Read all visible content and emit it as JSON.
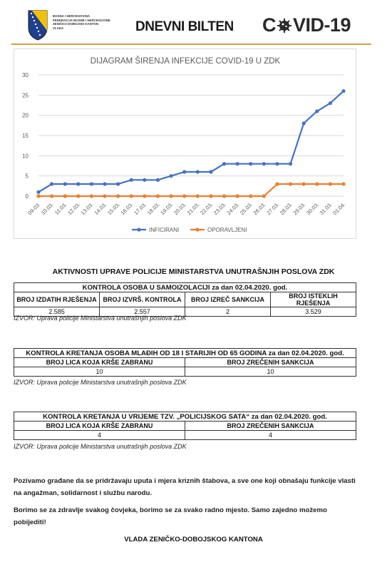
{
  "header": {
    "crest_lines": [
      "BOSNA I HERCEGOVINA",
      "FEDERACIJA BOSNE I HERCEGOVINE",
      "ZENIČKO-DOBOJSKI KANTON",
      "VLADA"
    ],
    "bulletin_title": "DNEVNI BILTEN",
    "covid_left": "C",
    "covid_right": "VID-19"
  },
  "chart_data": {
    "type": "line",
    "title": "DIJAGRAM ŠIRENJA INFEKCIJE COVID-19 U ZDK",
    "categories": [
      "09.03.",
      "10.03.",
      "11.03.",
      "12.03.",
      "13.03.",
      "14.03.",
      "15.03.",
      "16.03.",
      "17.03.",
      "18.03.",
      "19.03.",
      "20.03.",
      "21.03.",
      "22.03.",
      "23.03.",
      "24.03.",
      "25.03.",
      "26.03.",
      "27.03.",
      "28.03.",
      "29.03.",
      "30.03.",
      "31.03.",
      "01.04."
    ],
    "series": [
      {
        "name": "INFICIRANI",
        "color": "#4472c4",
        "values": [
          1,
          3,
          3,
          3,
          3,
          3,
          3,
          4,
          4,
          4,
          5,
          6,
          6,
          6,
          8,
          8,
          8,
          8,
          8,
          8,
          18,
          21,
          23,
          26
        ]
      },
      {
        "name": "OPORAVLJENI",
        "color": "#ed7d31",
        "values": [
          0,
          0,
          0,
          0,
          0,
          0,
          0,
          0,
          0,
          0,
          0,
          0,
          0,
          0,
          0,
          0,
          0,
          0,
          3,
          3,
          3,
          3,
          3,
          3
        ]
      }
    ],
    "yticks": [
      0,
      5,
      10,
      15,
      20,
      25,
      30
    ],
    "ylim": [
      0,
      30
    ],
    "grid": true,
    "legend": "bottom"
  },
  "activities_title": "AKTIVNOSTI UPRAVE POLICIJE MINISTARSTVA UNUTRAŠNJIH POSLOVA ZDK",
  "table1": {
    "title": "KONTROLA OSOBA U SAMOIZOLACIJI za dan 02.04.2020. god.",
    "columns": [
      "BROJ IZDATIH RJEŠENJA",
      "BROJ IZVRŠ. KONTROLA",
      "BROJ IZREČ SANKCIJA",
      "BROJ ISTEKLIH RJEŠENJA"
    ],
    "values": [
      "2.585",
      "2.557",
      "2",
      "3.529"
    ],
    "source": "IZVOR: Uprava policije Ministarstva unutrašnjih poslova ZDK"
  },
  "table2": {
    "title": "KONTROLA KRETANJA OSOBA MLAĐIH OD 18 I STARIJIH OD 65 GODINA za dan 02.04.2020. god.",
    "columns": [
      "BROJ LICA KOJA KRŠE ZABRANU",
      "BROJ ZREČENIH SANKCIJA"
    ],
    "values": [
      "10",
      "10"
    ],
    "source": "IZVOR: Uprava policije Ministarstva unutrašnjih poslova ZDK"
  },
  "table3": {
    "title": "KONTROLA KRETANJA U VRIJEME TZV. „POLICIJSKOG SATA“ za dan 02.04.2020. god.",
    "columns": [
      "BROJ LICA KOJA KRŠE ZABRANU",
      "BROJ ZREČENIH SANKCIJA"
    ],
    "values": [
      "4",
      "4"
    ],
    "source": "IZVOR: Uprava policije Ministarstva unutrašnjih poslova ZDK"
  },
  "paragraph1": "Pozivamo građane da se pridržavaju uputa i mjera kriznih štabova, a sve one koji obnašaju funkcije vlasti na angažman, solidarnost i službu narodu.",
  "paragraph2": "Borimo se za zdravlje svakog čovjeka, borimo se za svako radno mjesto. Samo zajedno možemo pobijediti!",
  "signature": "VLADA ZENIČKO-DOBOJSKOG KANTONA"
}
